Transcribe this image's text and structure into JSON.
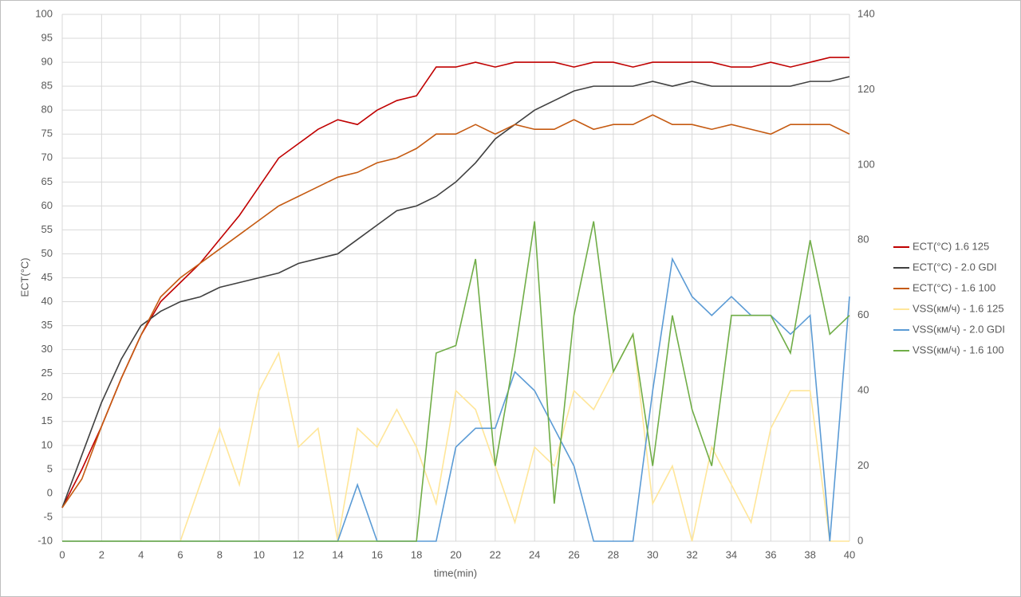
{
  "chart_data": {
    "type": "line",
    "xlabel": "time(min)",
    "ylabel": "ECT(°C)",
    "x": [
      0,
      1,
      2,
      3,
      4,
      5,
      6,
      7,
      8,
      9,
      10,
      11,
      12,
      13,
      14,
      15,
      16,
      17,
      18,
      19,
      20,
      21,
      22,
      23,
      24,
      25,
      26,
      27,
      28,
      29,
      30,
      31,
      32,
      33,
      34,
      35,
      36,
      37,
      38,
      39,
      40
    ],
    "xlim": [
      0,
      40
    ],
    "xticks": [
      0,
      2,
      4,
      6,
      8,
      10,
      12,
      14,
      16,
      18,
      20,
      22,
      24,
      26,
      28,
      30,
      32,
      34,
      36,
      38,
      40
    ],
    "ylim": [
      -10,
      100
    ],
    "yticks": [
      -10,
      -5,
      0,
      5,
      10,
      15,
      20,
      25,
      30,
      35,
      40,
      45,
      50,
      55,
      60,
      65,
      70,
      75,
      80,
      85,
      90,
      95,
      100
    ],
    "y2lim": [
      0,
      140
    ],
    "y2ticks": [
      0,
      20,
      40,
      60,
      80,
      100,
      120,
      140
    ],
    "grid": true,
    "legend": "right",
    "series": [
      {
        "name": "ECT(°C) 1.6 125",
        "color": "#c00000",
        "values": [
          -3,
          5,
          14,
          24,
          33,
          40,
          44,
          48,
          53,
          58,
          64,
          70,
          73,
          76,
          78,
          77,
          80,
          82,
          83,
          89,
          89,
          90,
          89,
          90,
          90,
          90,
          89,
          90,
          90,
          89,
          90,
          90,
          90,
          90,
          89,
          89,
          90,
          89,
          90,
          91,
          91
        ]
      },
      {
        "name": "ECT(°C) - 2.0 GDI",
        "color": "#404040",
        "values": [
          -3,
          8,
          19,
          28,
          35,
          38,
          40,
          41,
          43,
          44,
          45,
          46,
          48,
          49,
          50,
          53,
          56,
          59,
          60,
          62,
          65,
          69,
          74,
          77,
          80,
          82,
          84,
          85,
          85,
          85,
          86,
          85,
          86,
          85,
          85,
          85,
          85,
          85,
          86,
          86,
          87
        ]
      },
      {
        "name": "ECT(°C) - 1.6 100",
        "color": "#c55a11",
        "values": [
          -3,
          3,
          14,
          24,
          33,
          41,
          45,
          48,
          51,
          54,
          57,
          60,
          62,
          64,
          66,
          67,
          69,
          70,
          72,
          75,
          75,
          77,
          75,
          77,
          76,
          76,
          78,
          76,
          77,
          77,
          79,
          77,
          77,
          76,
          77,
          76,
          75,
          77,
          77,
          77,
          75
        ]
      },
      {
        "name": "VSS(км/ч) - 1.6 125",
        "color": "#ffe699",
        "axis": "y2",
        "values": [
          0,
          0,
          0,
          0,
          0,
          0,
          0,
          15,
          30,
          15,
          40,
          50,
          25,
          30,
          0,
          30,
          25,
          35,
          25,
          10,
          40,
          35,
          20,
          5,
          25,
          20,
          40,
          35,
          45,
          55,
          10,
          20,
          0,
          25,
          15,
          5,
          30,
          40,
          40,
          0,
          0
        ]
      },
      {
        "name": "VSS(км/ч) - 2.0 GDI",
        "color": "#5b9bd5",
        "axis": "y2",
        "values": [
          0,
          0,
          0,
          0,
          0,
          0,
          0,
          0,
          0,
          0,
          0,
          0,
          0,
          0,
          0,
          15,
          0,
          0,
          0,
          0,
          25,
          30,
          30,
          45,
          40,
          30,
          20,
          0,
          0,
          0,
          40,
          75,
          65,
          60,
          65,
          60,
          60,
          55,
          60,
          0,
          65
        ]
      },
      {
        "name": "VSS(км/ч) - 1.6 100",
        "color": "#70ad47",
        "axis": "y2",
        "values": [
          0,
          0,
          0,
          0,
          0,
          0,
          0,
          0,
          0,
          0,
          0,
          0,
          0,
          0,
          0,
          0,
          0,
          0,
          0,
          50,
          52,
          75,
          20,
          50,
          85,
          10,
          60,
          85,
          45,
          55,
          20,
          60,
          35,
          20,
          60,
          60,
          60,
          50,
          80,
          55,
          60
        ]
      }
    ]
  }
}
